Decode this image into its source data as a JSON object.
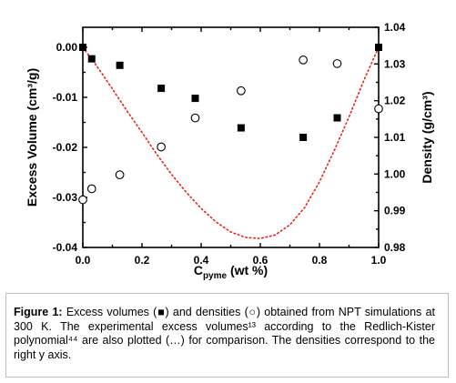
{
  "chart_data": {
    "type": "scatter",
    "xlabel_main": "C",
    "xlabel_sub": "pyme",
    "xlabel_unit": "(wt %)",
    "ylabel_left": "Excess Volume (cm³/g)",
    "ylabel_right": "Density (g/cm³)",
    "xlim": [
      0.0,
      1.0
    ],
    "ylim_left": [
      -0.04,
      0.004
    ],
    "ylim_right": [
      0.98,
      1.04
    ],
    "x_ticks": [
      "0.0",
      "0.2",
      "0.4",
      "0.6",
      "0.8",
      "1.0"
    ],
    "y_left_ticks": [
      "0.00",
      "-0.01",
      "-0.02",
      "-0.03",
      "-0.04"
    ],
    "y_right_ticks": [
      "1.04",
      "1.03",
      "1.02",
      "1.01",
      "1.00",
      "0.99",
      "0.98"
    ],
    "series": [
      {
        "marker": "filled-square",
        "axis": "left",
        "x": [
          0.0,
          0.03,
          0.125,
          0.265,
          0.38,
          0.535,
          0.745,
          0.86,
          1.0
        ],
        "y": [
          0.0,
          -0.0023,
          -0.0036,
          -0.0082,
          -0.0102,
          -0.0161,
          -0.018,
          -0.0141,
          0.0
        ]
      },
      {
        "marker": "open-circle",
        "axis": "right",
        "x": [
          0.0,
          0.03,
          0.125,
          0.265,
          0.38,
          0.535,
          0.745,
          0.86,
          1.0
        ],
        "y": [
          0.993,
          0.996,
          0.9998,
          1.0074,
          1.0153,
          1.0227,
          1.0311,
          1.0301,
          1.0178
        ]
      },
      {
        "style": "dotted-line",
        "color": "#e8231f",
        "axis": "left",
        "x": [
          0.0,
          0.05,
          0.1,
          0.15,
          0.2,
          0.25,
          0.3,
          0.35,
          0.4,
          0.45,
          0.5,
          0.55,
          0.6,
          0.65,
          0.7,
          0.75,
          0.8,
          0.85,
          0.9,
          0.95,
          1.0
        ],
        "y": [
          0.0,
          -0.004,
          -0.0083,
          -0.0128,
          -0.017,
          -0.0214,
          -0.0254,
          -0.029,
          -0.0322,
          -0.0349,
          -0.0369,
          -0.038,
          -0.0382,
          -0.0375,
          -0.0355,
          -0.032,
          -0.0269,
          -0.0206,
          -0.0139,
          -0.0066,
          0.0
        ]
      }
    ]
  },
  "caption": {
    "lead": "Figure 1:",
    "text": " Excess volumes (■) and densities (○) obtained from NPT simulations at 300 K. The experimental excess volumes¹³ according to the Redlich-Kister polynomial⁴⁴ are also plotted (…) for comparison. The densities correspond to the right y axis."
  }
}
